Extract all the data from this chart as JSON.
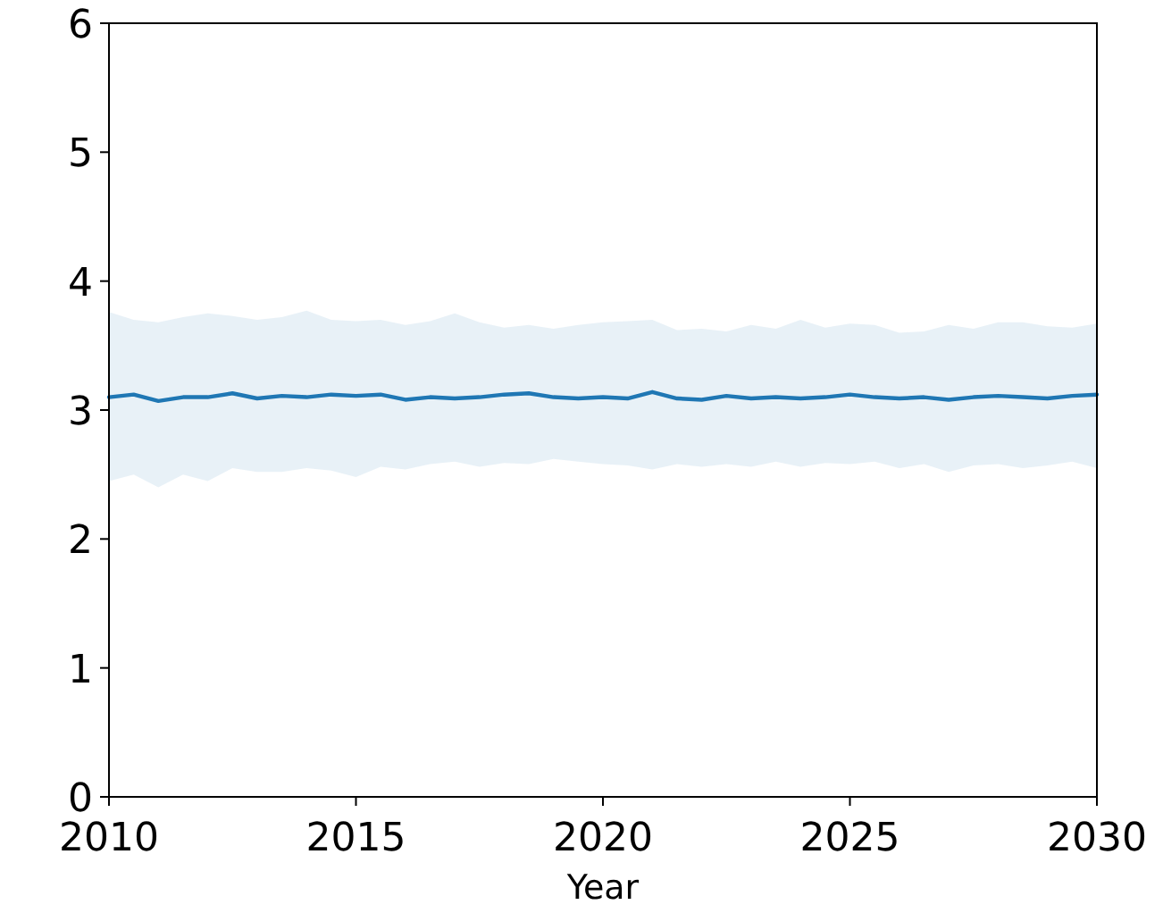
{
  "chart_data": {
    "type": "line",
    "xlabel": "Year",
    "x": [
      2010,
      2010.5,
      2011,
      2011.5,
      2012,
      2012.5,
      2013,
      2013.5,
      2014,
      2014.5,
      2015,
      2015.5,
      2016,
      2016.5,
      2017,
      2017.5,
      2018,
      2018.5,
      2019,
      2019.5,
      2020,
      2020.5,
      2021,
      2021.5,
      2022,
      2022.5,
      2023,
      2023.5,
      2024,
      2024.5,
      2025,
      2025.5,
      2026,
      2026.5,
      2027,
      2027.5,
      2028,
      2028.5,
      2029,
      2029.5,
      2030
    ],
    "series": [
      {
        "color": "#1f77b4",
        "values": [
          3.1,
          3.12,
          3.07,
          3.1,
          3.1,
          3.13,
          3.09,
          3.11,
          3.1,
          3.12,
          3.11,
          3.12,
          3.08,
          3.1,
          3.09,
          3.1,
          3.12,
          3.13,
          3.1,
          3.09,
          3.1,
          3.09,
          3.14,
          3.09,
          3.08,
          3.11,
          3.09,
          3.1,
          3.09,
          3.1,
          3.12,
          3.1,
          3.09,
          3.1,
          3.08,
          3.1,
          3.11,
          3.1,
          3.09,
          3.11,
          3.12
        ],
        "upper": [
          3.76,
          3.7,
          3.68,
          3.72,
          3.75,
          3.73,
          3.7,
          3.72,
          3.77,
          3.7,
          3.69,
          3.7,
          3.66,
          3.69,
          3.75,
          3.68,
          3.64,
          3.66,
          3.63,
          3.66,
          3.68,
          3.69,
          3.7,
          3.62,
          3.63,
          3.61,
          3.66,
          3.63,
          3.7,
          3.64,
          3.67,
          3.66,
          3.6,
          3.61,
          3.66,
          3.63,
          3.68,
          3.68,
          3.65,
          3.64,
          3.67
        ],
        "lower": [
          2.45,
          2.5,
          2.4,
          2.5,
          2.45,
          2.55,
          2.52,
          2.52,
          2.55,
          2.53,
          2.48,
          2.56,
          2.54,
          2.58,
          2.6,
          2.56,
          2.59,
          2.58,
          2.62,
          2.6,
          2.58,
          2.57,
          2.54,
          2.58,
          2.56,
          2.58,
          2.56,
          2.6,
          2.56,
          2.59,
          2.58,
          2.6,
          2.55,
          2.58,
          2.52,
          2.57,
          2.58,
          2.55,
          2.57,
          2.6,
          2.55
        ]
      }
    ],
    "xlim": [
      2010,
      2030
    ],
    "xticks": [
      2010,
      2015,
      2020,
      2025,
      2030
    ],
    "ylim": [
      0,
      6
    ],
    "yticks": [
      0,
      1,
      2,
      3,
      4,
      5,
      6
    ]
  }
}
